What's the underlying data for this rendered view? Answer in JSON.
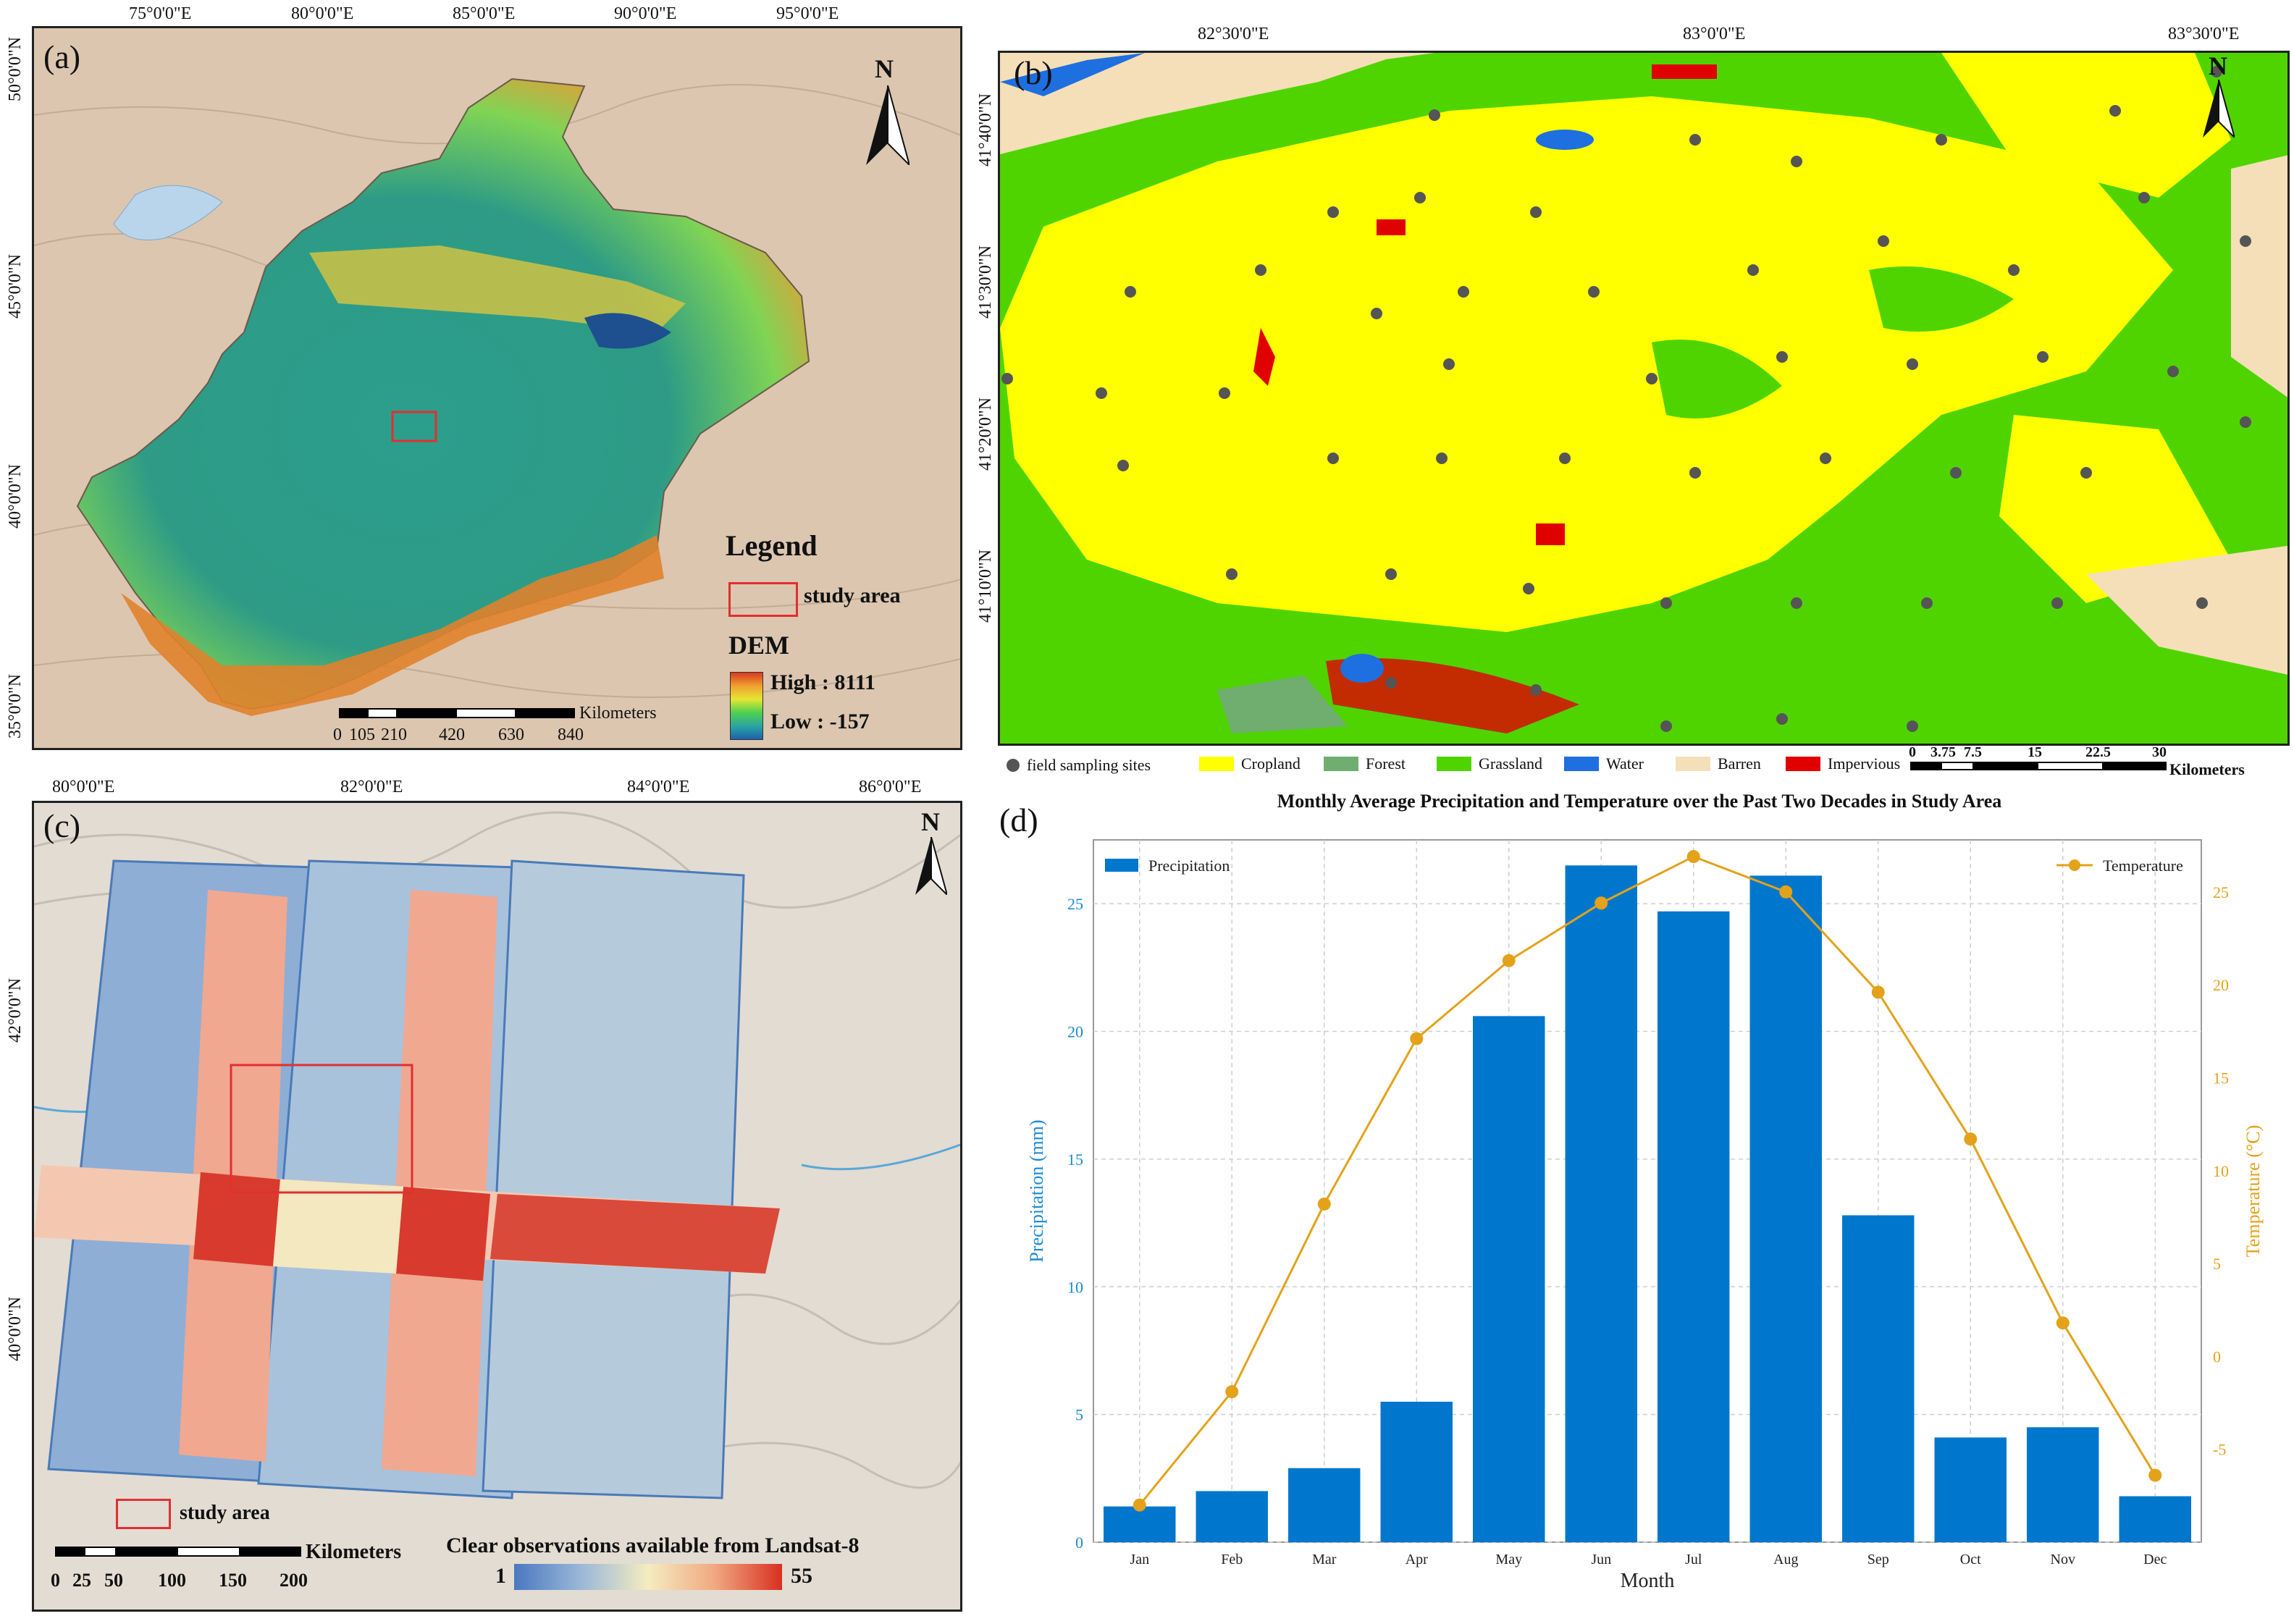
{
  "panel_a": {
    "label": "(a)",
    "lon_ticks": [
      "75°0'0\"E",
      "80°0'0\"E",
      "85°0'0\"E",
      "90°0'0\"E",
      "95°0'0\"E"
    ],
    "lat_ticks": [
      "50°0'0\"N",
      "45°0'0\"N",
      "40°0'0\"N",
      "35°0'0\"N"
    ],
    "north": "N",
    "legend_title": "Legend",
    "study_area": "study area",
    "dem_title": "DEM",
    "dem_high": "High : 8111",
    "dem_low": "Low : -157",
    "scale_unit": "Kilometers",
    "scale_labels": [
      "0",
      "105",
      "210",
      "420",
      "630",
      "840"
    ]
  },
  "panel_b": {
    "label": "(b)",
    "lon_ticks": [
      "82°30'0\"E",
      "83°0'0\"E",
      "83°30'0\"E"
    ],
    "lat_ticks": [
      "41°40'0\"N",
      "41°30'0\"N",
      "41°20'0\"N",
      "41°10'0\"N"
    ],
    "north": "N",
    "legend": [
      {
        "label": "field sampling sites",
        "color": "#555555",
        "kind": "dot"
      },
      {
        "label": "Cropland",
        "color": "#ffff00",
        "kind": "box"
      },
      {
        "label": "Forest",
        "color": "#6fae6f",
        "kind": "box"
      },
      {
        "label": "Grassland",
        "color": "#4fd400",
        "kind": "box"
      },
      {
        "label": "Water",
        "color": "#1e6fe0",
        "kind": "box"
      },
      {
        "label": "Barren",
        "color": "#f5dfb8",
        "kind": "box"
      },
      {
        "label": "Impervious",
        "color": "#e00000",
        "kind": "box"
      }
    ],
    "scale_unit": "Kilometers",
    "scale_labels": [
      "0",
      "3.75",
      "7.5",
      "15",
      "22.5",
      "30"
    ]
  },
  "panel_c": {
    "label": "(c)",
    "lon_ticks": [
      "80°0'0\"E",
      "82°0'0\"E",
      "84°0'0\"E",
      "86°0'0\"E"
    ],
    "lat_ticks": [
      "42°0'0\"N",
      "40°0'0\"N"
    ],
    "north": "N",
    "study_area": "study area",
    "scale_unit": "Kilometers",
    "scale_labels": [
      "0",
      "25",
      "50",
      "100",
      "150",
      "200"
    ],
    "colorbar_title": "Clear observations available from Landsat-8",
    "colorbar_min": "1",
    "colorbar_max": "55"
  },
  "panel_d": {
    "label": "(d)"
  },
  "chart_data": {
    "type": "bar",
    "title": "Monthly Average Precipitation and Temperature over the Past Two Decades in Study Area",
    "xlabel": "Month",
    "categories": [
      "Jan",
      "Feb",
      "Mar",
      "Apr",
      "May",
      "Jun",
      "Jul",
      "Aug",
      "Sep",
      "Oct",
      "Nov",
      "Dec"
    ],
    "series": [
      {
        "name": "Precipitation",
        "type": "bar",
        "axis": "left",
        "color": "#0077cc",
        "values": [
          1.4,
          2.0,
          2.9,
          5.5,
          20.6,
          26.5,
          24.7,
          26.1,
          12.8,
          4.1,
          4.5,
          1.8
        ]
      },
      {
        "name": "Temperature",
        "type": "line",
        "axis": "right",
        "color": "#e3a21a",
        "values": [
          -8.0,
          -1.9,
          8.2,
          17.1,
          21.3,
          24.4,
          26.9,
          25.0,
          19.6,
          11.7,
          1.8,
          -6.4
        ]
      }
    ],
    "ylabel_left": "Precipitation (mm)",
    "ylabel_right": "Temperature (°C)",
    "ylim_left": [
      0,
      27.5
    ],
    "ylim_right": [
      -10,
      27.8
    ],
    "yticks_left": [
      "0",
      "5",
      "10",
      "15",
      "20",
      "25"
    ],
    "yticks_right": [
      "-5",
      "0",
      "5",
      "10",
      "15",
      "20",
      "25"
    ],
    "left_axis_color": "#1a8ad4",
    "right_axis_color": "#e3a21a",
    "grid": true,
    "legend_left": "top-left",
    "legend_right": "top-right"
  }
}
